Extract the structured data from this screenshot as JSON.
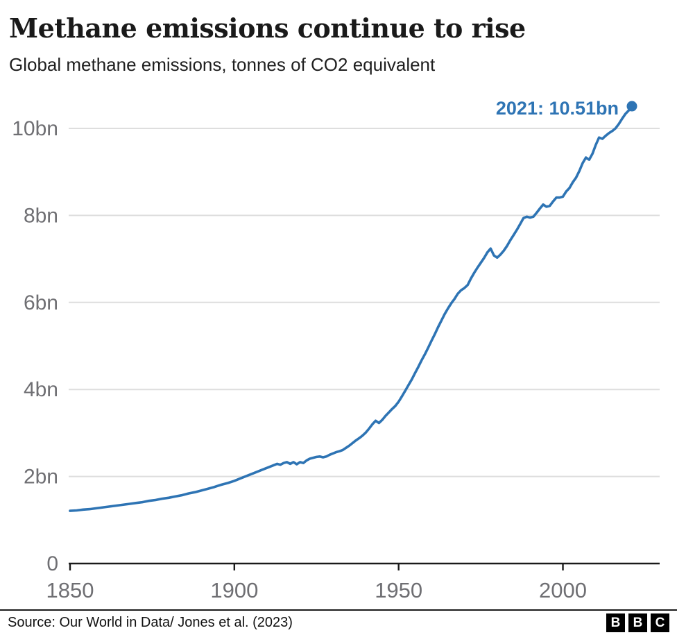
{
  "colors": {
    "line": "#2e74b4",
    "annotation": "#2e74b4",
    "gridline": "#dedede",
    "axis": "#1a1a1a",
    "tick_label": "#6f6f73",
    "title": "#1a1a1a"
  },
  "chart_data": {
    "type": "line",
    "title": "Methane emissions continue to rise",
    "subtitle": "Global methane emissions, tonnes of CO2 equivalent",
    "xlabel": "",
    "ylabel": "",
    "xlim": [
      1850,
      2021
    ],
    "ylim": [
      0,
      10.6
    ],
    "grid": "horizontal",
    "legend": false,
    "x_ticks": [
      {
        "value": 1850,
        "label": "1850"
      },
      {
        "value": 1900,
        "label": "1900"
      },
      {
        "value": 1950,
        "label": "1950"
      },
      {
        "value": 2000,
        "label": "2000"
      }
    ],
    "y_ticks": [
      {
        "value": 0,
        "label": "0"
      },
      {
        "value": 2,
        "label": "2bn"
      },
      {
        "value": 4,
        "label": "4bn"
      },
      {
        "value": 6,
        "label": "6bn"
      },
      {
        "value": 8,
        "label": "8bn"
      },
      {
        "value": 10,
        "label": "10bn"
      }
    ],
    "annotation": {
      "label": "2021: 10.51bn",
      "year": 2021,
      "value": 10.51
    },
    "series": [
      {
        "name": "Global methane emissions (bn tonnes CO2e)",
        "x": [
          1850,
          1852,
          1854,
          1856,
          1858,
          1860,
          1862,
          1864,
          1866,
          1868,
          1870,
          1872,
          1874,
          1876,
          1878,
          1880,
          1882,
          1884,
          1886,
          1888,
          1890,
          1892,
          1894,
          1896,
          1898,
          1900,
          1902,
          1904,
          1906,
          1908,
          1910,
          1912,
          1913,
          1914,
          1915,
          1916,
          1917,
          1918,
          1919,
          1920,
          1921,
          1922,
          1923,
          1924,
          1925,
          1926,
          1927,
          1928,
          1929,
          1930,
          1931,
          1932,
          1933,
          1934,
          1935,
          1936,
          1937,
          1938,
          1939,
          1940,
          1941,
          1942,
          1943,
          1944,
          1945,
          1946,
          1947,
          1948,
          1949,
          1950,
          1951,
          1952,
          1953,
          1954,
          1955,
          1956,
          1957,
          1958,
          1959,
          1960,
          1961,
          1962,
          1963,
          1964,
          1965,
          1966,
          1967,
          1968,
          1969,
          1970,
          1971,
          1972,
          1973,
          1974,
          1975,
          1976,
          1977,
          1978,
          1979,
          1980,
          1981,
          1982,
          1983,
          1984,
          1985,
          1986,
          1987,
          1988,
          1989,
          1990,
          1991,
          1992,
          1993,
          1994,
          1995,
          1996,
          1997,
          1998,
          1999,
          2000,
          2001,
          2002,
          2003,
          2004,
          2005,
          2006,
          2007,
          2008,
          2009,
          2010,
          2011,
          2012,
          2013,
          2014,
          2015,
          2016,
          2017,
          2018,
          2019,
          2020,
          2021
        ],
        "y": [
          1.21,
          1.22,
          1.24,
          1.25,
          1.27,
          1.29,
          1.31,
          1.33,
          1.35,
          1.37,
          1.39,
          1.41,
          1.44,
          1.46,
          1.49,
          1.51,
          1.54,
          1.57,
          1.61,
          1.64,
          1.68,
          1.72,
          1.76,
          1.81,
          1.85,
          1.9,
          1.96,
          2.02,
          2.08,
          2.14,
          2.2,
          2.26,
          2.29,
          2.27,
          2.31,
          2.33,
          2.29,
          2.33,
          2.28,
          2.33,
          2.31,
          2.37,
          2.41,
          2.43,
          2.45,
          2.46,
          2.44,
          2.46,
          2.5,
          2.53,
          2.56,
          2.58,
          2.61,
          2.66,
          2.71,
          2.77,
          2.83,
          2.88,
          2.94,
          3.01,
          3.1,
          3.2,
          3.28,
          3.23,
          3.3,
          3.39,
          3.47,
          3.55,
          3.62,
          3.72,
          3.84,
          3.97,
          4.1,
          4.23,
          4.38,
          4.52,
          4.67,
          4.81,
          4.96,
          5.12,
          5.27,
          5.43,
          5.58,
          5.73,
          5.86,
          5.98,
          6.08,
          6.2,
          6.28,
          6.33,
          6.4,
          6.55,
          6.68,
          6.8,
          6.91,
          7.02,
          7.15,
          7.24,
          7.08,
          7.03,
          7.1,
          7.19,
          7.3,
          7.43,
          7.55,
          7.67,
          7.8,
          7.94,
          7.97,
          7.95,
          7.97,
          8.06,
          8.16,
          8.25,
          8.2,
          8.22,
          8.32,
          8.41,
          8.41,
          8.43,
          8.55,
          8.63,
          8.76,
          8.87,
          9.02,
          9.2,
          9.33,
          9.28,
          9.42,
          9.62,
          9.79,
          9.76,
          9.83,
          9.89,
          9.94,
          10.0,
          10.1,
          10.22,
          10.33,
          10.41,
          10.51
        ]
      }
    ]
  },
  "footer": {
    "source": "Source: Our World in Data/ Jones et al. (2023)",
    "logo": [
      "B",
      "B",
      "C"
    ]
  }
}
